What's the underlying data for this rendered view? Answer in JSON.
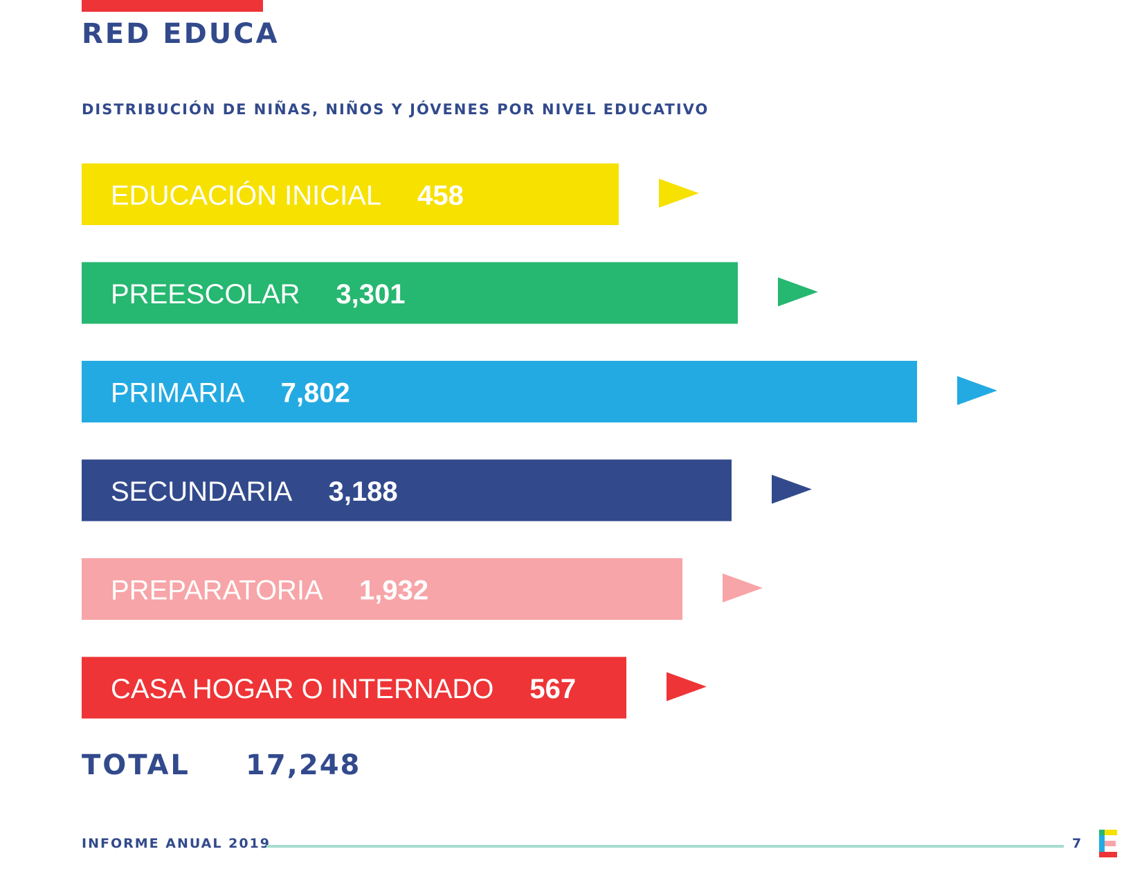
{
  "header": {
    "title": "RED EDUCA"
  },
  "chart_data": {
    "type": "bar",
    "orientation": "horizontal",
    "title": "DISTRIBUCIÓN DE NIÑAS, NIÑOS Y JÓVENES POR NIVEL EDUCATIVO",
    "categories": [
      "EDUCACIÓN INICIAL",
      "PREESCOLAR",
      "PRIMARIA",
      "SECUNDARIA",
      "PREPARATORIA",
      "CASA HOGAR O INTERNADO"
    ],
    "values": [
      458,
      3301,
      7802,
      3188,
      1932,
      567
    ],
    "value_labels": [
      "458",
      "3,301",
      "7,802",
      "3,188",
      "1,932",
      "567"
    ],
    "colors": [
      "#f7e100",
      "#26b770",
      "#24aae2",
      "#324a8c",
      "#f7a5a8",
      "#ee3436"
    ],
    "grid": false,
    "legend": "none"
  },
  "total": {
    "label": "TOTAL",
    "value": "17,248"
  },
  "footer": {
    "label": "INFORME ANUAL 2019",
    "page": "7"
  },
  "logo": {
    "icon": "e-logo-icon",
    "colors": [
      "#26b770",
      "#f7e100",
      "#24aae2",
      "#f7a5a8",
      "#ee3436"
    ]
  }
}
